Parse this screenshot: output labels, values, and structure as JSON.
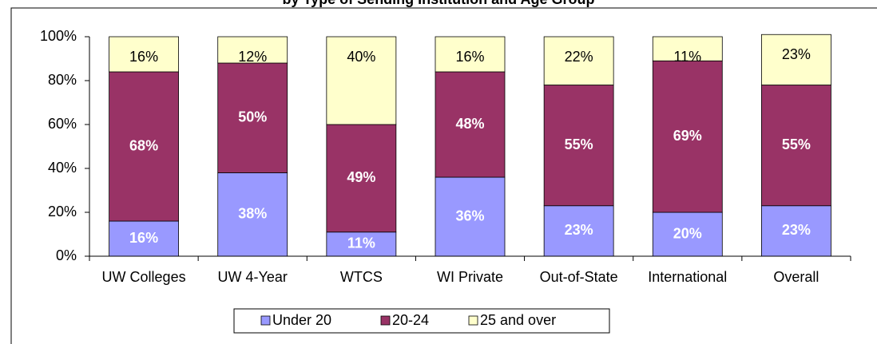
{
  "chart_data": {
    "type": "stacked_bar",
    "title": "by Type of Sending Institution and Age Group",
    "categories": [
      "UW Colleges",
      "UW 4-Year",
      "WTCS",
      "WI Private",
      "Out-of-State",
      "International",
      "Overall"
    ],
    "series": [
      {
        "name": "Under 20",
        "color": "#9999ff",
        "values": [
          16,
          38,
          11,
          36,
          23,
          20,
          23
        ],
        "value_labels": [
          "16%",
          "38%",
          "11%",
          "36%",
          "23%",
          "20%",
          "23%"
        ]
      },
      {
        "name": "20-24",
        "color": "#993366",
        "values": [
          68,
          50,
          49,
          48,
          55,
          69,
          55
        ],
        "value_labels": [
          "68%",
          "50%",
          "49%",
          "48%",
          "55%",
          "69%",
          "55%"
        ]
      },
      {
        "name": "25 and over",
        "color": "#ffffcc",
        "values": [
          16,
          12,
          40,
          16,
          22,
          11,
          23
        ],
        "value_labels": [
          "16%",
          "12%",
          "40%",
          "16%",
          "22%",
          "11%",
          "23%"
        ]
      }
    ],
    "ylim": [
      0,
      100
    ],
    "yticks": [
      {
        "value": 0,
        "label": "0%"
      },
      {
        "value": 20,
        "label": "20%"
      },
      {
        "value": 40,
        "label": "40%"
      },
      {
        "value": 60,
        "label": "60%"
      },
      {
        "value": 80,
        "label": "80%"
      },
      {
        "value": 100,
        "label": "100%"
      }
    ],
    "legend": "bottom"
  }
}
